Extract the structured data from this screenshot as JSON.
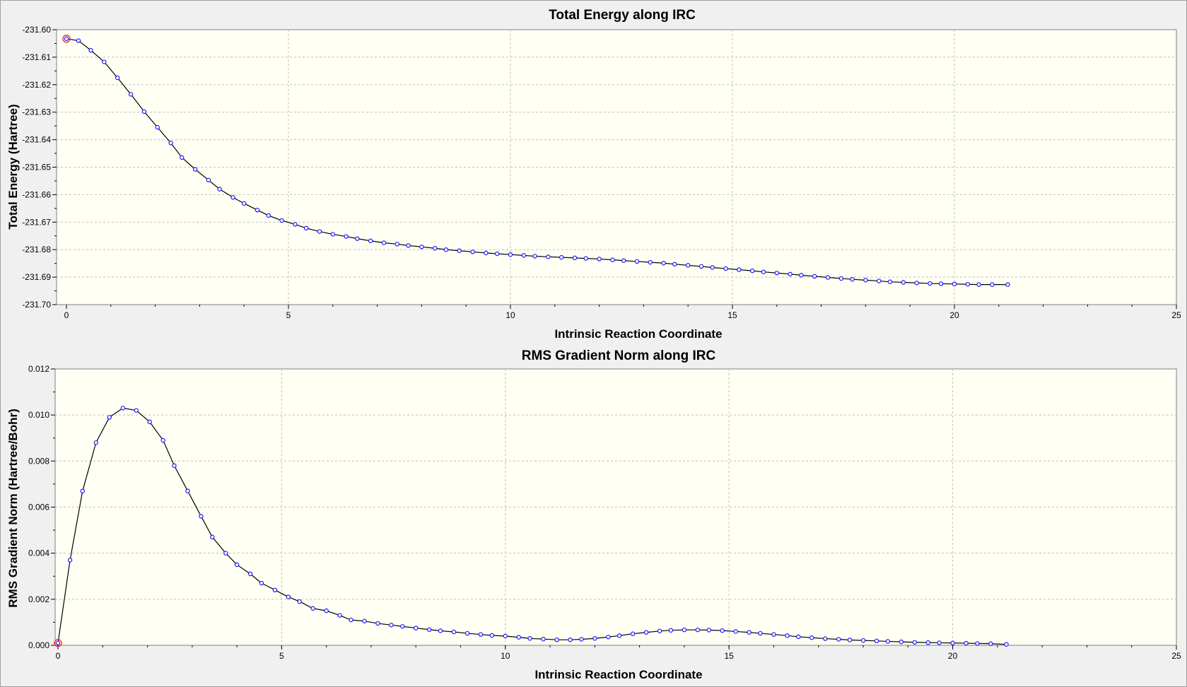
{
  "chart_data": [
    {
      "type": "scatter",
      "title": "Total Energy along IRC",
      "xlabel": "Intrinsic Reaction Coordinate",
      "ylabel": "Total Energy (Hartree)",
      "xlim": [
        0,
        25
      ],
      "ylim": [
        -231.7,
        -231.6
      ],
      "xticks": [
        0,
        5,
        10,
        15,
        20,
        25
      ],
      "yticks": [
        -231.6,
        -231.61,
        -231.62,
        -231.63,
        -231.64,
        -231.65,
        -231.66,
        -231.67,
        -231.68,
        -231.69,
        -231.7
      ],
      "xtick_labels": [
        "0",
        "5",
        "10",
        "15",
        "20",
        "25"
      ],
      "ytick_labels": [
        "-231.60",
        "-231.61",
        "-231.62",
        "-231.63",
        "-231.64",
        "-231.65",
        "-231.66",
        "-231.67",
        "-231.68",
        "-231.69",
        "-231.70"
      ],
      "grid": true,
      "legend": "none",
      "highlighted_point_index": 0,
      "series": [
        {
          "x": [
            0,
            0.27,
            0.55,
            0.85,
            1.15,
            1.45,
            1.75,
            2.05,
            2.35,
            2.6,
            2.9,
            3.2,
            3.45,
            3.75,
            4.0,
            4.3,
            4.55,
            4.85,
            5.15,
            5.4,
            5.7,
            6.0,
            6.3,
            6.55,
            6.85,
            7.15,
            7.45,
            7.7,
            8.0,
            8.3,
            8.55,
            8.85,
            9.15,
            9.45,
            9.7,
            10.0,
            10.3,
            10.55,
            10.85,
            11.15,
            11.45,
            11.7,
            12.0,
            12.3,
            12.55,
            12.85,
            13.15,
            13.45,
            13.7,
            14.0,
            14.3,
            14.55,
            14.85,
            15.15,
            15.45,
            15.7,
            16.0,
            16.3,
            16.55,
            16.85,
            17.15,
            17.45,
            17.7,
            18.0,
            18.3,
            18.55,
            18.85,
            19.15,
            19.45,
            19.7,
            20.0,
            20.3,
            20.55,
            20.85,
            21.2
          ],
          "y": [
            -231.6033,
            -231.604,
            -231.6075,
            -231.6117,
            -231.6175,
            -231.6235,
            -231.6298,
            -231.6355,
            -231.6412,
            -231.6465,
            -231.6508,
            -231.6547,
            -231.658,
            -231.661,
            -231.6632,
            -231.6656,
            -231.6676,
            -231.6694,
            -231.6708,
            -231.6722,
            -231.6734,
            -231.6744,
            -231.6752,
            -231.676,
            -231.6768,
            -231.6775,
            -231.678,
            -231.6785,
            -231.679,
            -231.6795,
            -231.68,
            -231.6804,
            -231.6808,
            -231.6812,
            -231.6815,
            -231.6818,
            -231.6821,
            -231.6824,
            -231.6826,
            -231.6828,
            -231.683,
            -231.6832,
            -231.6834,
            -231.6837,
            -231.684,
            -231.6843,
            -231.6846,
            -231.6849,
            -231.6853,
            -231.6857,
            -231.6861,
            -231.6865,
            -231.6869,
            -231.6873,
            -231.6877,
            -231.6881,
            -231.6885,
            -231.6889,
            -231.6893,
            -231.6897,
            -231.6901,
            -231.6905,
            -231.6908,
            -231.6911,
            -231.6914,
            -231.6917,
            -231.6919,
            -231.6921,
            -231.6923,
            -231.6924,
            -231.6925,
            -231.6926,
            -231.6927,
            -231.6927,
            -231.6927
          ]
        }
      ]
    },
    {
      "type": "scatter",
      "title": "RMS Gradient Norm along IRC",
      "xlabel": "Intrinsic Reaction Coordinate",
      "ylabel": "RMS Gradient Norm (Hartree/Bohr)",
      "xlim": [
        0,
        25
      ],
      "ylim": [
        0,
        0.012
      ],
      "xticks": [
        0,
        5,
        10,
        15,
        20,
        25
      ],
      "yticks": [
        0.0,
        0.002,
        0.004,
        0.006,
        0.008,
        0.01,
        0.012
      ],
      "xtick_labels": [
        "0",
        "5",
        "10",
        "15",
        "20",
        "25"
      ],
      "ytick_labels": [
        "0.000",
        "0.002",
        "0.004",
        "0.006",
        "0.008",
        "0.010",
        "0.012"
      ],
      "grid": true,
      "legend": "none",
      "highlighted_point_index": 0,
      "series": [
        {
          "x": [
            0,
            0.27,
            0.55,
            0.85,
            1.15,
            1.45,
            1.75,
            2.05,
            2.35,
            2.6,
            2.9,
            3.2,
            3.45,
            3.75,
            4.0,
            4.3,
            4.55,
            4.85,
            5.15,
            5.4,
            5.7,
            6.0,
            6.3,
            6.55,
            6.85,
            7.15,
            7.45,
            7.7,
            8.0,
            8.3,
            8.55,
            8.85,
            9.15,
            9.45,
            9.7,
            10.0,
            10.3,
            10.55,
            10.85,
            11.15,
            11.45,
            11.7,
            12.0,
            12.3,
            12.55,
            12.85,
            13.15,
            13.45,
            13.7,
            14.0,
            14.3,
            14.55,
            14.85,
            15.15,
            15.45,
            15.7,
            16.0,
            16.3,
            16.55,
            16.85,
            17.15,
            17.45,
            17.7,
            18.0,
            18.3,
            18.55,
            18.85,
            19.15,
            19.45,
            19.7,
            20.0,
            20.3,
            20.55,
            20.85,
            21.2
          ],
          "y": [
            0.0001,
            0.0037,
            0.0067,
            0.0088,
            0.0099,
            0.0103,
            0.0102,
            0.0097,
            0.0089,
            0.0078,
            0.0067,
            0.0056,
            0.0047,
            0.004,
            0.0035,
            0.0031,
            0.0027,
            0.0024,
            0.0021,
            0.0019,
            0.0016,
            0.0015,
            0.0013,
            0.0011,
            0.00105,
            0.00095,
            0.00088,
            0.00082,
            0.00075,
            0.00068,
            0.00063,
            0.00058,
            0.00052,
            0.00047,
            0.00043,
            0.0004,
            0.00035,
            0.0003,
            0.00027,
            0.00024,
            0.00024,
            0.00026,
            0.0003,
            0.00036,
            0.00042,
            0.0005,
            0.00056,
            0.00062,
            0.00065,
            0.00067,
            0.00067,
            0.00066,
            0.00064,
            0.0006,
            0.00056,
            0.00052,
            0.00047,
            0.00042,
            0.00037,
            0.00033,
            0.00029,
            0.00026,
            0.00023,
            0.00021,
            0.00019,
            0.00017,
            0.00015,
            0.00013,
            0.00012,
            0.00011,
            0.0001,
            9e-05,
            8e-05,
            7e-05,
            4e-05
          ]
        }
      ]
    }
  ]
}
